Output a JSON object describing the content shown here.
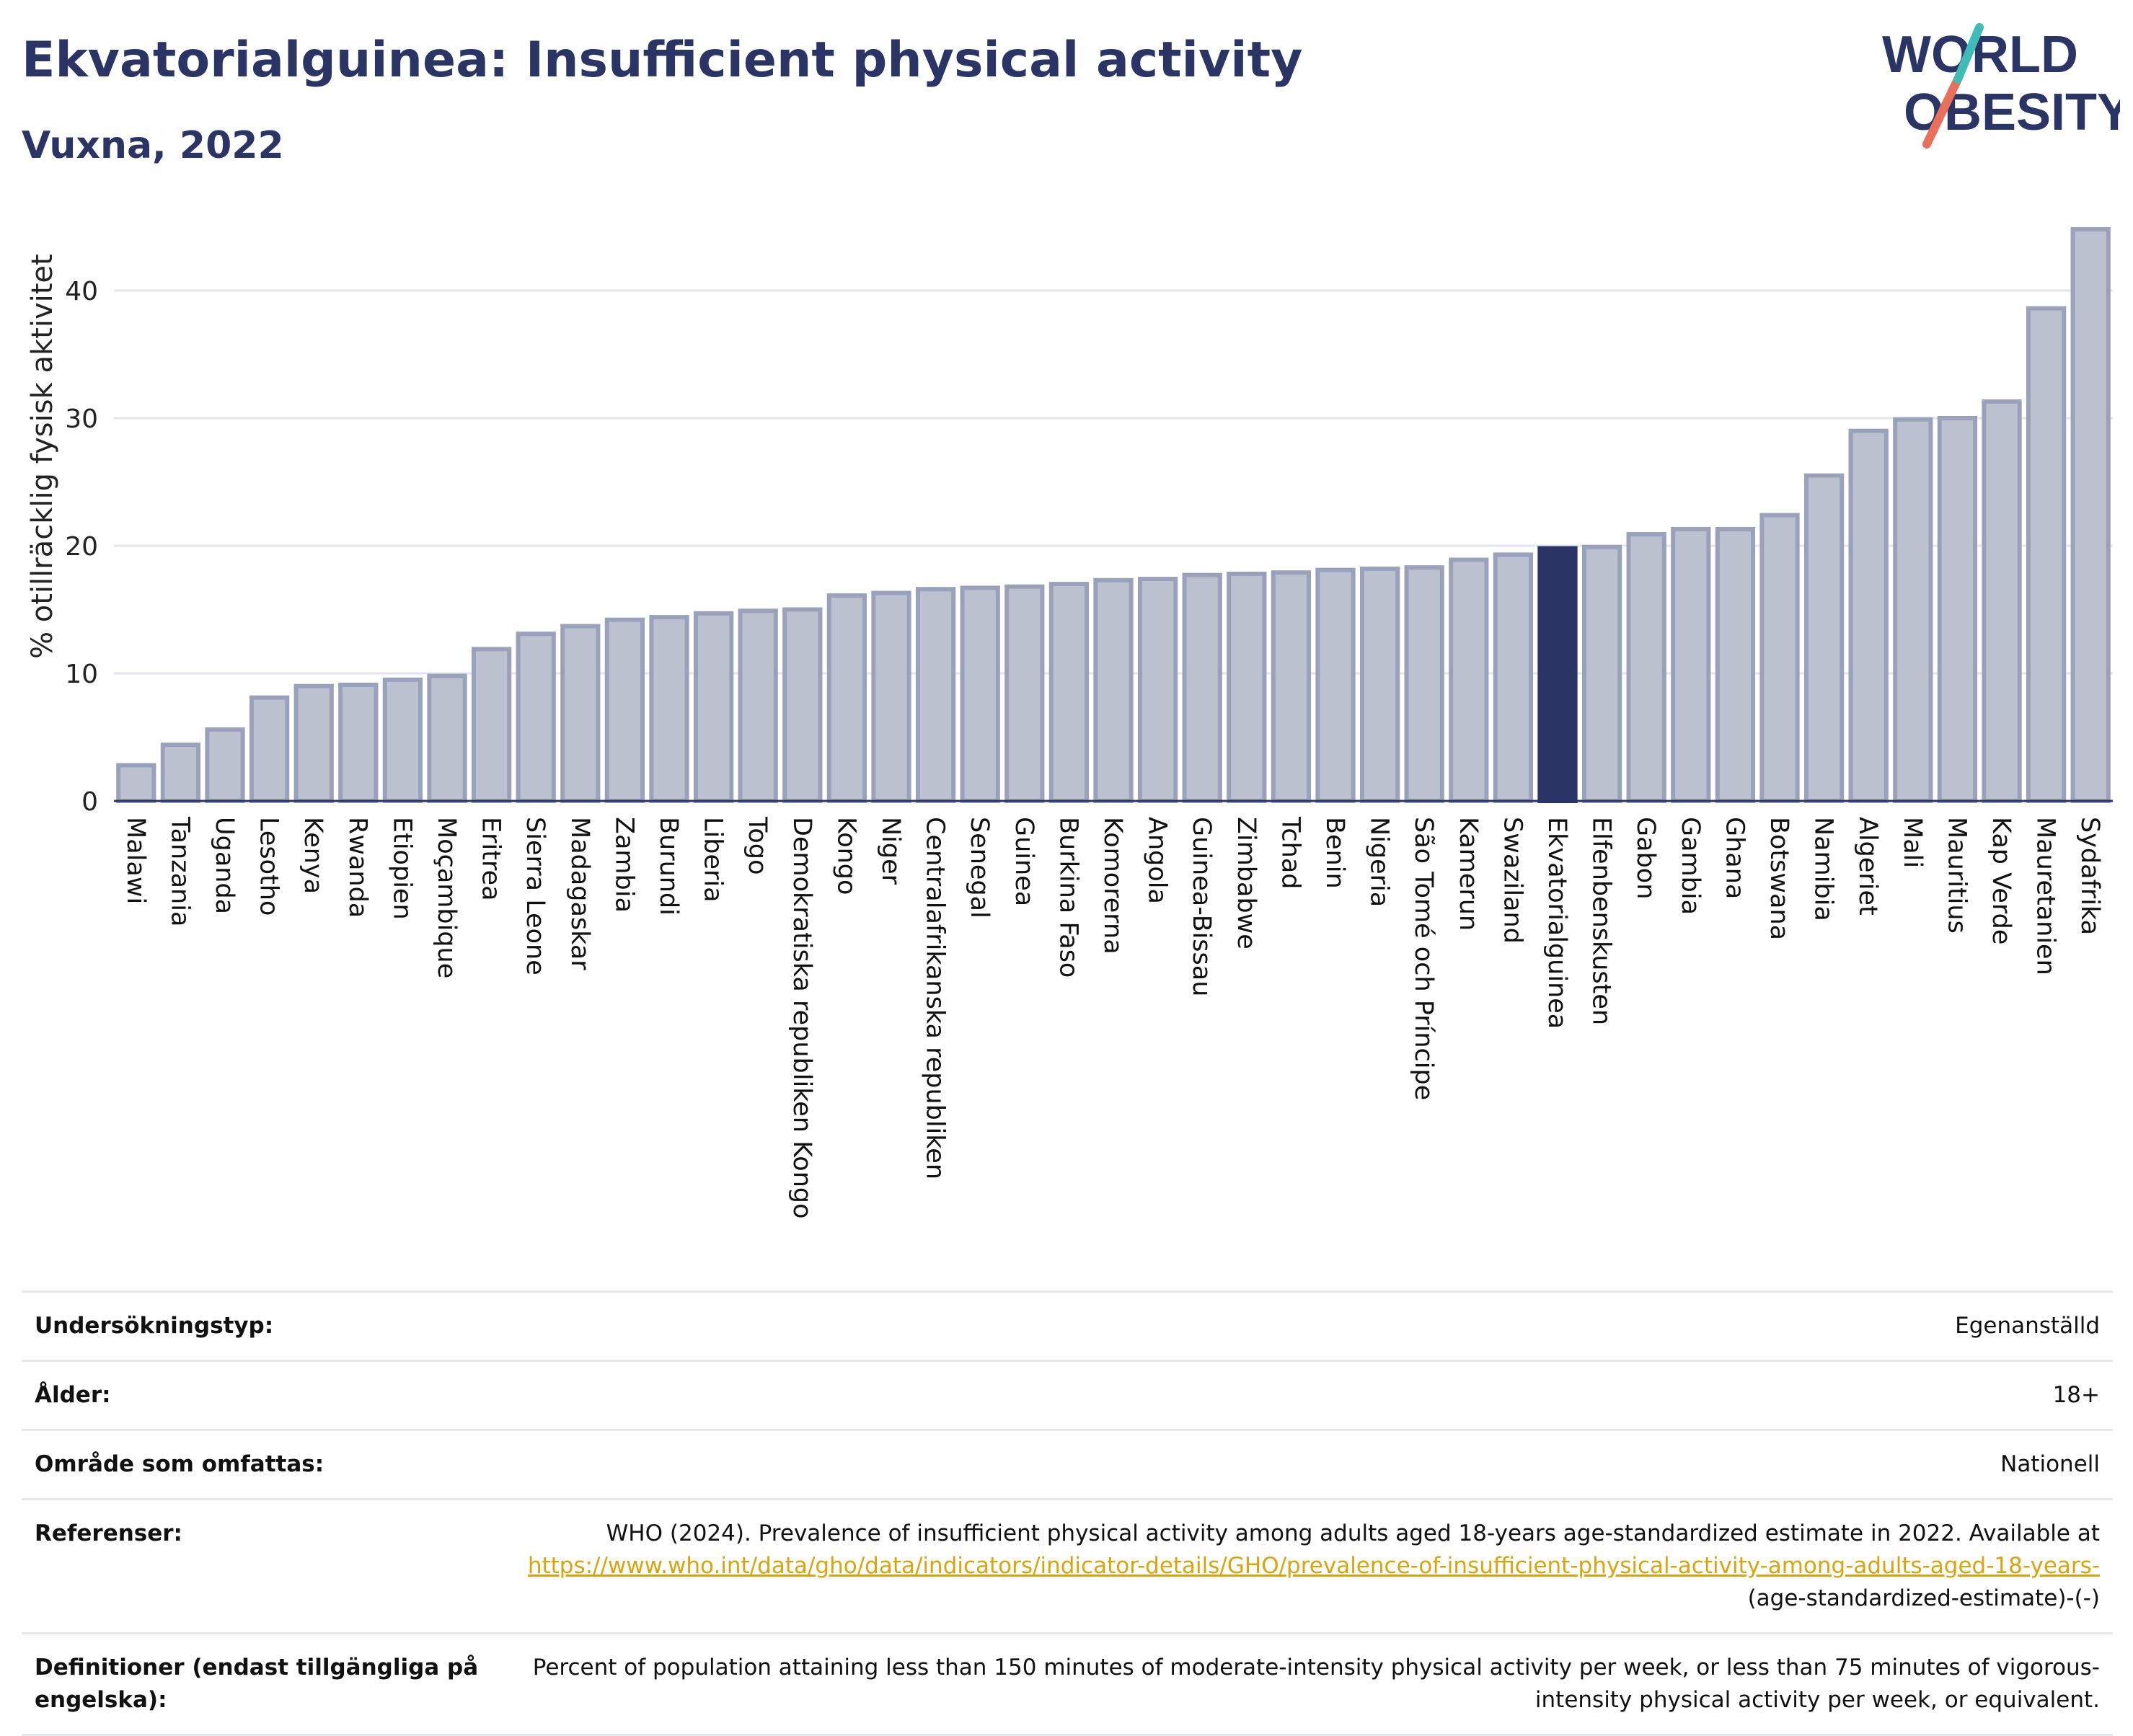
{
  "header": {
    "title": "Ekvatorialguinea: Insufficient physical activity",
    "subtitle": "Vuxna, 2022",
    "logo_line1": "WORLD",
    "logo_line2": "OBESITY"
  },
  "colors": {
    "bar": "#bcc1d0",
    "bar_border": "#9aa1bb",
    "highlight": "#2b3565",
    "grid": "#e3e6ec",
    "link": "#d9a40c"
  },
  "chart_data": {
    "type": "bar",
    "ylabel": "% otillräcklig fysisk aktivitet",
    "ylim": [
      0,
      46
    ],
    "yticks": [
      0,
      10,
      20,
      30,
      40
    ],
    "grid": true,
    "highlight": "Ekvatorialguinea",
    "categories": [
      "Malawi",
      "Tanzania",
      "Uganda",
      "Lesotho",
      "Kenya",
      "Rwanda",
      "Etiopien",
      "Moçambique",
      "Eritrea",
      "Sierra Leone",
      "Madagaskar",
      "Zambia",
      "Burundi",
      "Liberia",
      "Togo",
      "Demokratiska republiken Kongo",
      "Kongo",
      "Niger",
      "Centralafrikanska republiken",
      "Senegal",
      "Guinea",
      "Burkina Faso",
      "Komorerna",
      "Angola",
      "Guinea-Bissau",
      "Zimbabwe",
      "Tchad",
      "Benin",
      "Nigeria",
      "São Tomé och Príncipe",
      "Kamerun",
      "Swaziland",
      "Ekvatorialguinea",
      "Elfenbenskusten",
      "Gabon",
      "Gambia",
      "Ghana",
      "Botswana",
      "Namibia",
      "Algeriet",
      "Mali",
      "Mauritius",
      "Kap Verde",
      "Mauretanien",
      "Sydafrika"
    ],
    "values": [
      2.8,
      4.4,
      5.6,
      8.1,
      9.0,
      9.1,
      9.5,
      9.8,
      11.9,
      13.1,
      13.7,
      14.2,
      14.4,
      14.7,
      14.9,
      15.0,
      16.1,
      16.3,
      16.6,
      16.7,
      16.8,
      17.0,
      17.3,
      17.4,
      17.7,
      17.8,
      17.9,
      18.1,
      18.2,
      18.3,
      18.9,
      19.3,
      19.8,
      19.9,
      20.9,
      21.3,
      21.3,
      22.4,
      25.5,
      29.0,
      29.9,
      30.0,
      31.3,
      38.6,
      44.8
    ]
  },
  "info": {
    "survey_label": "Undersökningstyp:",
    "survey_value": "Egenanställd",
    "age_label": "Ålder:",
    "age_value": "18+",
    "area_label": "Område som omfattas:",
    "area_value": "Nationell",
    "ref_label": "Referenser:",
    "ref_text": "WHO (2024). Prevalence of insufficient physical activity among adults aged 18-years age-standardized estimate in 2022. Available at",
    "ref_link": "https://www.who.int/data/gho/data/indicators/indicator-details/GHO/prevalence-of-insufficient-physical-activity-among-adults-aged-18-years-",
    "ref_tail": "(age-standardized-estimate)-(-)",
    "def_label": "Definitioner (endast tillgängliga på engelska):",
    "def_value": "Percent of population attaining less than 150 minutes of moderate-intensity physical activity per week, or less than 75 minutes of vigorous-intensity physical activity per week, or equivalent."
  }
}
